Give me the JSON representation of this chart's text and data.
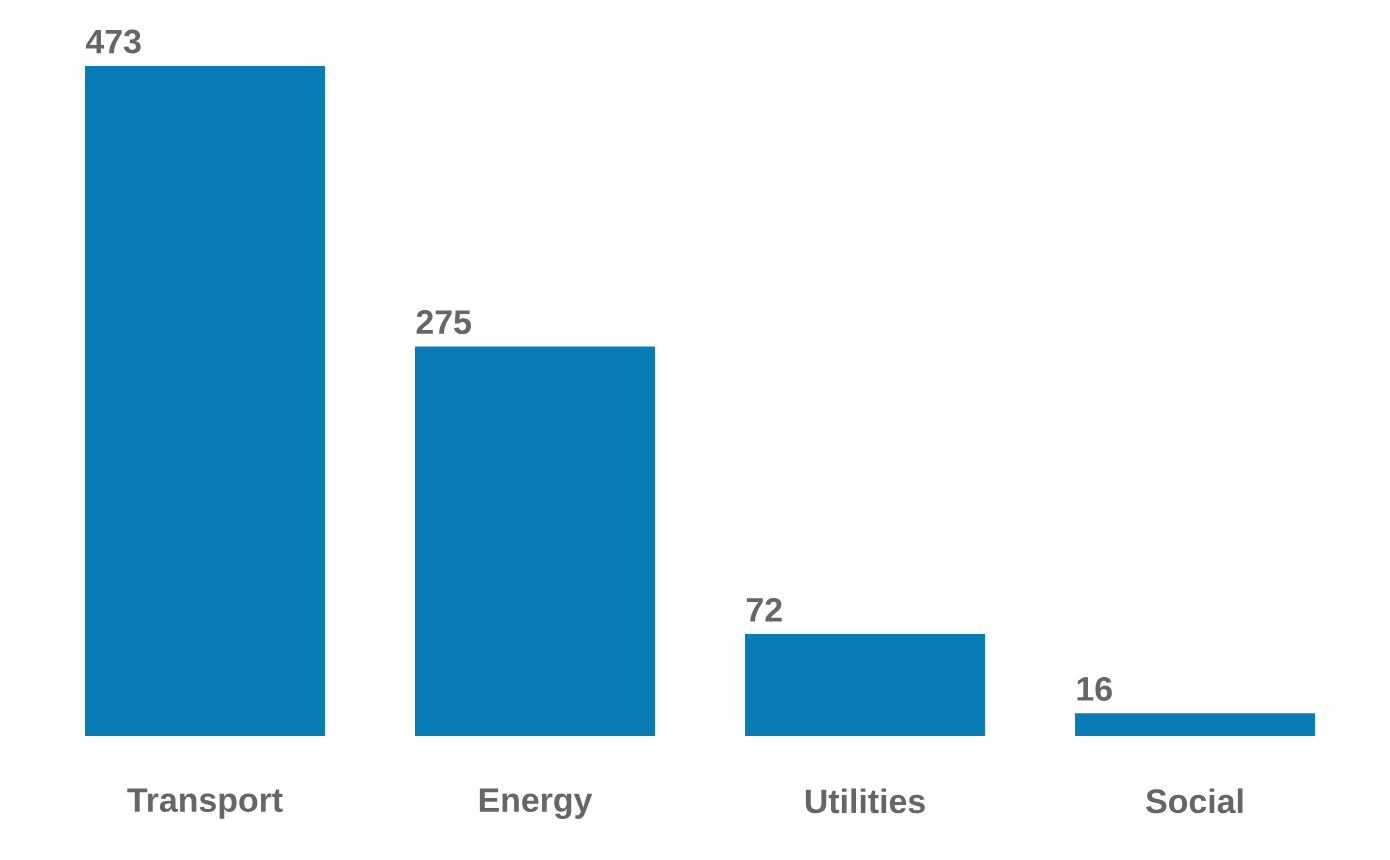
{
  "chart_data": {
    "type": "bar",
    "categories": [
      "Transport",
      "Energy",
      "Utilities",
      "Social"
    ],
    "values": [
      473,
      275,
      72,
      16
    ],
    "color": "#0a7cb5",
    "data_labels": true
  }
}
